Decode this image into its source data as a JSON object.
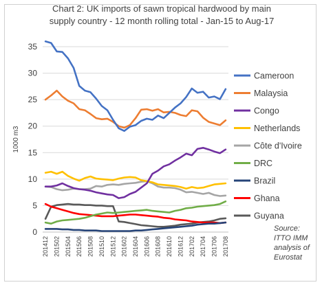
{
  "chart_data": {
    "type": "line",
    "title": "Chart 2: UK imports of sawn tropical hardwood by main supply country - 12 month rolling total - Jan-15 to Aug-17",
    "title_lines": [
      "Chart 2: UK imports of sawn tropical hardwood by main",
      "supply country - 12 month rolling total - Jan-15 to Aug-17"
    ],
    "xlabel": "",
    "ylabel": "1000 m3",
    "ylim": [
      0,
      35
    ],
    "yticks": [
      0,
      5,
      10,
      15,
      20,
      25,
      30,
      35
    ],
    "grid": true,
    "legend_position": "right",
    "x": [
      "201412",
      "201501",
      "201502",
      "201503",
      "201504",
      "201505",
      "201506",
      "201507",
      "201508",
      "201509",
      "201510",
      "201511",
      "201512",
      "201601",
      "201602",
      "201603",
      "201604",
      "201605",
      "201606",
      "201607",
      "201608",
      "201609",
      "201610",
      "201611",
      "201612",
      "201701",
      "201702",
      "201703",
      "201704",
      "201705",
      "201706",
      "201707",
      "201708"
    ],
    "xtick_labels": [
      "201412",
      "201502",
      "201504",
      "201506",
      "201508",
      "201510",
      "201512",
      "201602",
      "201604",
      "201606",
      "201608",
      "201610",
      "201612",
      "201702",
      "201704",
      "201706",
      "201708"
    ],
    "series": [
      {
        "name": "Cameroon",
        "color": "#4472c4",
        "values": [
          36.0,
          35.7,
          34.1,
          34.0,
          32.8,
          31.0,
          27.6,
          26.7,
          26.4,
          25.2,
          23.8,
          23.0,
          21.2,
          19.6,
          19.1,
          19.9,
          20.2,
          21.0,
          21.4,
          21.2,
          22.0,
          21.5,
          22.5,
          23.5,
          24.3,
          25.5,
          27.1,
          26.3,
          26.5,
          25.4,
          25.6,
          25.1,
          27.0
        ]
      },
      {
        "name": "Malaysia",
        "color": "#ed7d31",
        "values": [
          25.0,
          25.8,
          26.7,
          25.6,
          24.8,
          24.3,
          23.2,
          23.0,
          22.3,
          21.5,
          21.3,
          21.4,
          20.8,
          20.0,
          19.7,
          20.2,
          21.5,
          23.1,
          23.2,
          22.9,
          23.2,
          22.6,
          22.7,
          22.5,
          22.1,
          21.9,
          23.0,
          22.8,
          21.6,
          20.8,
          20.5,
          20.2,
          21.1
        ]
      },
      {
        "name": "Congo",
        "color": "#7030a0",
        "values": [
          8.6,
          8.6,
          8.8,
          9.2,
          8.7,
          8.3,
          8.1,
          8.0,
          7.8,
          7.5,
          7.3,
          7.1,
          7.0,
          6.4,
          6.6,
          7.2,
          7.6,
          8.4,
          9.2,
          11.0,
          11.6,
          12.4,
          12.8,
          13.5,
          14.1,
          14.8,
          14.5,
          15.7,
          15.9,
          15.6,
          15.2,
          14.9,
          15.6
        ]
      },
      {
        "name": "Netherlands",
        "color": "#ffc000",
        "values": [
          11.2,
          11.4,
          11.0,
          11.4,
          10.6,
          10.1,
          9.7,
          10.2,
          10.5,
          10.1,
          10.0,
          9.9,
          9.8,
          10.1,
          10.3,
          10.4,
          10.3,
          9.8,
          9.6,
          9.4,
          9.0,
          8.9,
          8.8,
          8.7,
          8.5,
          8.2,
          8.5,
          8.3,
          8.4,
          8.7,
          9.0,
          9.1,
          9.2
        ]
      },
      {
        "name": "Côte d'Ivoire",
        "color": "#a5a5a5",
        "values": [
          8.6,
          8.5,
          8.1,
          7.9,
          8.0,
          8.2,
          8.1,
          8.1,
          8.2,
          8.7,
          8.6,
          8.9,
          9.0,
          8.9,
          9.1,
          9.2,
          9.3,
          9.5,
          9.6,
          9.2,
          8.6,
          8.4,
          8.4,
          8.3,
          8.0,
          7.5,
          7.6,
          7.4,
          7.2,
          7.4,
          7.0,
          6.8,
          6.9
        ]
      },
      {
        "name": "DRC",
        "color": "#70ad47",
        "values": [
          1.8,
          1.6,
          2.0,
          2.2,
          2.3,
          2.4,
          2.5,
          2.7,
          3.0,
          3.3,
          3.5,
          3.7,
          3.6,
          3.7,
          3.8,
          3.9,
          4.0,
          4.1,
          4.2,
          4.0,
          3.9,
          3.8,
          3.7,
          4.0,
          4.2,
          4.5,
          4.6,
          4.8,
          4.9,
          5.0,
          5.1,
          5.3,
          5.8
        ]
      },
      {
        "name": "Brazil",
        "color": "#264478",
        "values": [
          0.6,
          0.6,
          0.6,
          0.5,
          0.5,
          0.4,
          0.4,
          0.3,
          0.3,
          0.3,
          0.2,
          0.2,
          0.2,
          0.2,
          0.2,
          0.2,
          0.3,
          0.3,
          0.4,
          0.5,
          0.6,
          0.7,
          0.8,
          0.9,
          1.0,
          1.1,
          1.2,
          1.4,
          1.5,
          1.6,
          1.6,
          1.7,
          1.8
        ]
      },
      {
        "name": "Ghana",
        "color": "#ff0000",
        "values": [
          5.3,
          4.8,
          4.5,
          4.2,
          3.9,
          3.6,
          3.4,
          3.3,
          3.2,
          3.1,
          3.0,
          3.0,
          3.0,
          3.1,
          3.2,
          3.3,
          3.3,
          3.2,
          3.1,
          3.0,
          2.9,
          2.7,
          2.6,
          2.4,
          2.3,
          2.2,
          2.0,
          1.9,
          1.8,
          1.8,
          1.8,
          1.7,
          1.8
        ]
      },
      {
        "name": "Guyana",
        "color": "#595959",
        "values": [
          2.5,
          4.8,
          5.1,
          5.2,
          5.3,
          5.2,
          5.2,
          5.1,
          5.1,
          5.0,
          5.0,
          4.9,
          4.9,
          2.0,
          1.9,
          1.7,
          1.5,
          1.3,
          1.2,
          1.1,
          1.0,
          1.0,
          1.1,
          1.2,
          1.4,
          1.5,
          1.6,
          1.8,
          1.9,
          2.0,
          2.2,
          2.5,
          2.6
        ]
      }
    ]
  },
  "source_lines": [
    "Source:",
    "ITTO IMM",
    "analysis of",
    "Eurostat"
  ]
}
